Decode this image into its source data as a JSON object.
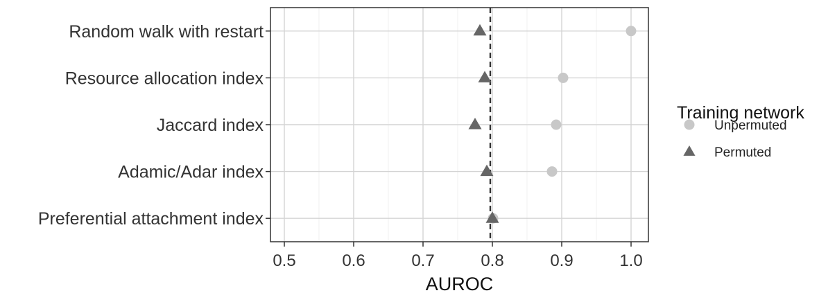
{
  "chart_data": {
    "type": "scatter",
    "categories": [
      "Random walk with restart",
      "Resource allocation index",
      "Jaccard index",
      "Adamic/Adar index",
      "Preferential attachment index"
    ],
    "series": [
      {
        "name": "Unpermuted",
        "shape": "circle",
        "color": "#c8c8c8",
        "values": [
          1.0,
          0.902,
          0.892,
          0.886,
          0.801
        ]
      },
      {
        "name": "Permuted",
        "shape": "triangle",
        "color": "#666666",
        "values": [
          0.782,
          0.789,
          0.775,
          0.792,
          0.8
        ]
      }
    ],
    "reference_line": {
      "value": 0.797,
      "style": "dashed"
    },
    "xlabel": "AUROC",
    "xlim": [
      0.48,
      1.025
    ],
    "xticks": [
      0.5,
      0.6,
      0.7,
      0.8,
      0.9,
      1.0
    ],
    "xtick_labels": [
      "0.5",
      "0.6",
      "0.7",
      "0.8",
      "0.9",
      "1.0"
    ],
    "grid": true,
    "legend_title": "Training network",
    "legend_position": "right"
  }
}
